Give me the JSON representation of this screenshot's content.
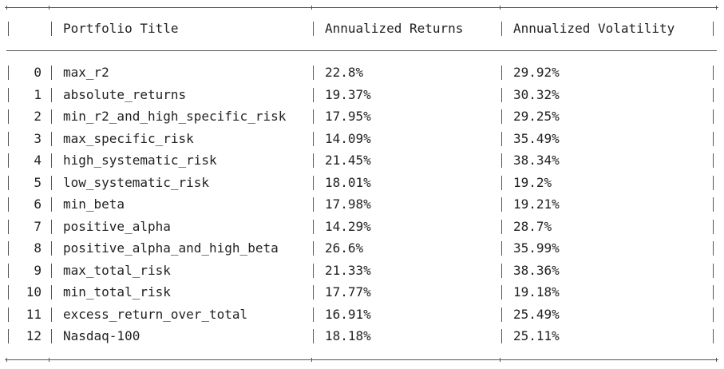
{
  "table": {
    "columns": [
      "",
      "Portfolio Title",
      "Annualized Returns",
      "Annualized Volatility"
    ],
    "rows": [
      {
        "index": "0",
        "title": "max_r2",
        "returns": "22.8%",
        "volatility": "29.92%"
      },
      {
        "index": "1",
        "title": "absolute_returns",
        "returns": "19.37%",
        "volatility": "30.32%"
      },
      {
        "index": "2",
        "title": "min_r2_and_high_specific_risk",
        "returns": "17.95%",
        "volatility": "29.25%"
      },
      {
        "index": "3",
        "title": "max_specific_risk",
        "returns": "14.09%",
        "volatility": "35.49%"
      },
      {
        "index": "4",
        "title": "high_systematic_risk",
        "returns": "21.45%",
        "volatility": "38.34%"
      },
      {
        "index": "5",
        "title": "low_systematic_risk",
        "returns": "18.01%",
        "volatility": "19.2%"
      },
      {
        "index": "6",
        "title": "min_beta",
        "returns": "17.98%",
        "volatility": "19.21%"
      },
      {
        "index": "7",
        "title": "positive_alpha",
        "returns": "14.29%",
        "volatility": "28.7%"
      },
      {
        "index": "8",
        "title": "positive_alpha_and_high_beta",
        "returns": "26.6%",
        "volatility": "35.99%"
      },
      {
        "index": "9",
        "title": "max_total_risk",
        "returns": "21.33%",
        "volatility": "38.36%"
      },
      {
        "index": "10",
        "title": "min_total_risk",
        "returns": "17.77%",
        "volatility": "19.18%"
      },
      {
        "index": "11",
        "title": "excess_return_over_total",
        "returns": "16.91%",
        "volatility": "25.49%"
      },
      {
        "index": "12",
        "title": "Nasdaq-100",
        "returns": "18.18%",
        "volatility": "25.11%"
      }
    ]
  }
}
